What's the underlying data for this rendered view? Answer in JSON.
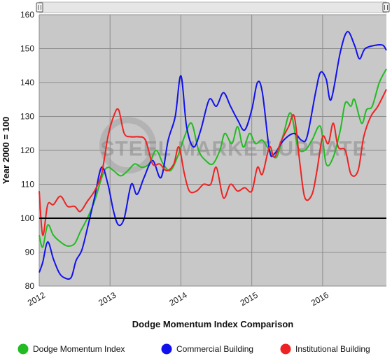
{
  "chart_data": {
    "type": "line",
    "xlabel": "Dodge Momentum Index Comparison",
    "ylabel": "Year 2000 = 100",
    "ylim": [
      80,
      160
    ],
    "yticks": [
      80,
      90,
      100,
      110,
      120,
      130,
      140,
      150,
      160
    ],
    "xlim": [
      2012.0,
      2016.9
    ],
    "xticks": [
      {
        "value": 2012.0,
        "label": "2012"
      },
      {
        "value": 2013.0,
        "label": "2013"
      },
      {
        "value": 2014.0,
        "label": "2014"
      },
      {
        "value": 2015.0,
        "label": "2015"
      },
      {
        "value": 2016.0,
        "label": "2016"
      }
    ],
    "reference_line": 100,
    "grid": true,
    "legend_position": "bottom",
    "watermark": "STEEL MARKET UPDATE",
    "colors": {
      "plot_bg": "#c8c8c8",
      "grid": "#8c8c8c",
      "reference": "#000000"
    },
    "series": [
      {
        "name": "Dodge Momentum Index",
        "color": "#22bb22",
        "points": [
          [
            2012.0,
            95
          ],
          [
            2012.05,
            91.5
          ],
          [
            2012.12,
            98
          ],
          [
            2012.2,
            95
          ],
          [
            2012.3,
            93
          ],
          [
            2012.4,
            91.8
          ],
          [
            2012.5,
            92.5
          ],
          [
            2012.58,
            96
          ],
          [
            2012.68,
            100
          ],
          [
            2012.78,
            105
          ],
          [
            2012.9,
            113
          ],
          [
            2012.97,
            115
          ],
          [
            2013.05,
            114
          ],
          [
            2013.15,
            112.5
          ],
          [
            2013.25,
            114
          ],
          [
            2013.35,
            116
          ],
          [
            2013.45,
            115
          ],
          [
            2013.55,
            116
          ],
          [
            2013.65,
            120
          ],
          [
            2013.75,
            116
          ],
          [
            2013.85,
            114
          ],
          [
            2013.95,
            118
          ],
          [
            2014.05,
            124
          ],
          [
            2014.15,
            128
          ],
          [
            2014.25,
            120
          ],
          [
            2014.35,
            117
          ],
          [
            2014.45,
            116
          ],
          [
            2014.55,
            120
          ],
          [
            2014.62,
            125
          ],
          [
            2014.72,
            122
          ],
          [
            2014.8,
            127
          ],
          [
            2014.88,
            121
          ],
          [
            2014.97,
            125
          ],
          [
            2015.05,
            122
          ],
          [
            2015.15,
            123
          ],
          [
            2015.25,
            120
          ],
          [
            2015.35,
            118
          ],
          [
            2015.45,
            125
          ],
          [
            2015.55,
            131
          ],
          [
            2015.65,
            121
          ],
          [
            2015.75,
            120
          ],
          [
            2015.85,
            123
          ],
          [
            2015.97,
            127
          ],
          [
            2016.05,
            116
          ],
          [
            2016.15,
            118
          ],
          [
            2016.25,
            126
          ],
          [
            2016.32,
            134
          ],
          [
            2016.4,
            133
          ],
          [
            2016.45,
            135
          ],
          [
            2016.55,
            128
          ],
          [
            2016.62,
            132
          ],
          [
            2016.7,
            133
          ],
          [
            2016.8,
            140
          ],
          [
            2016.9,
            144
          ]
        ]
      },
      {
        "name": "Commercial Building",
        "color": "#1111ee",
        "points": [
          [
            2012.0,
            84
          ],
          [
            2012.05,
            87
          ],
          [
            2012.12,
            93
          ],
          [
            2012.2,
            88
          ],
          [
            2012.28,
            84
          ],
          [
            2012.35,
            82.5
          ],
          [
            2012.45,
            82.5
          ],
          [
            2012.52,
            87.5
          ],
          [
            2012.6,
            90.5
          ],
          [
            2012.68,
            97
          ],
          [
            2012.78,
            106
          ],
          [
            2012.88,
            115
          ],
          [
            2012.97,
            110
          ],
          [
            2013.05,
            102
          ],
          [
            2013.12,
            98
          ],
          [
            2013.2,
            100
          ],
          [
            2013.3,
            110
          ],
          [
            2013.38,
            107
          ],
          [
            2013.48,
            112
          ],
          [
            2013.6,
            117
          ],
          [
            2013.72,
            112
          ],
          [
            2013.82,
            123
          ],
          [
            2013.92,
            130
          ],
          [
            2014.0,
            142
          ],
          [
            2014.08,
            127
          ],
          [
            2014.18,
            121
          ],
          [
            2014.28,
            126
          ],
          [
            2014.4,
            135
          ],
          [
            2014.5,
            133
          ],
          [
            2014.6,
            137
          ],
          [
            2014.7,
            133
          ],
          [
            2014.8,
            129
          ],
          [
            2014.9,
            126
          ],
          [
            2015.0,
            132
          ],
          [
            2015.08,
            140
          ],
          [
            2015.15,
            137
          ],
          [
            2015.25,
            120
          ],
          [
            2015.32,
            119
          ],
          [
            2015.45,
            123
          ],
          [
            2015.6,
            125
          ],
          [
            2015.7,
            123
          ],
          [
            2015.78,
            124
          ],
          [
            2015.9,
            137
          ],
          [
            2015.97,
            143
          ],
          [
            2016.05,
            141
          ],
          [
            2016.12,
            135
          ],
          [
            2016.25,
            149
          ],
          [
            2016.35,
            155
          ],
          [
            2016.45,
            151
          ],
          [
            2016.52,
            147
          ],
          [
            2016.6,
            150
          ],
          [
            2016.75,
            151
          ],
          [
            2016.85,
            151
          ],
          [
            2016.9,
            149.5
          ]
        ]
      },
      {
        "name": "Institutional Building",
        "color": "#ee2222",
        "points": [
          [
            2012.0,
            108
          ],
          [
            2012.05,
            95
          ],
          [
            2012.12,
            104
          ],
          [
            2012.2,
            104
          ],
          [
            2012.3,
            106.5
          ],
          [
            2012.4,
            103.5
          ],
          [
            2012.5,
            103.5
          ],
          [
            2012.58,
            102
          ],
          [
            2012.68,
            105
          ],
          [
            2012.78,
            108
          ],
          [
            2012.88,
            113
          ],
          [
            2012.97,
            124
          ],
          [
            2013.05,
            130
          ],
          [
            2013.12,
            132
          ],
          [
            2013.2,
            125
          ],
          [
            2013.3,
            124
          ],
          [
            2013.4,
            124
          ],
          [
            2013.5,
            123
          ],
          [
            2013.6,
            116
          ],
          [
            2013.7,
            116
          ],
          [
            2013.8,
            114
          ],
          [
            2013.9,
            116
          ],
          [
            2013.97,
            121
          ],
          [
            2014.05,
            113
          ],
          [
            2014.12,
            108
          ],
          [
            2014.22,
            108
          ],
          [
            2014.32,
            110
          ],
          [
            2014.42,
            110
          ],
          [
            2014.5,
            115
          ],
          [
            2014.6,
            106
          ],
          [
            2014.7,
            110
          ],
          [
            2014.8,
            108
          ],
          [
            2014.9,
            109
          ],
          [
            2015.0,
            108
          ],
          [
            2015.08,
            115
          ],
          [
            2015.15,
            113
          ],
          [
            2015.25,
            121
          ],
          [
            2015.32,
            118
          ],
          [
            2015.42,
            123
          ],
          [
            2015.52,
            127
          ],
          [
            2015.6,
            130
          ],
          [
            2015.68,
            116
          ],
          [
            2015.75,
            106
          ],
          [
            2015.85,
            107
          ],
          [
            2015.92,
            114
          ],
          [
            2016.0,
            124
          ],
          [
            2016.08,
            122
          ],
          [
            2016.15,
            128
          ],
          [
            2016.22,
            121
          ],
          [
            2016.32,
            120
          ],
          [
            2016.4,
            113
          ],
          [
            2016.5,
            114
          ],
          [
            2016.58,
            124
          ],
          [
            2016.68,
            130
          ],
          [
            2016.78,
            133
          ],
          [
            2016.9,
            138
          ]
        ]
      }
    ]
  }
}
